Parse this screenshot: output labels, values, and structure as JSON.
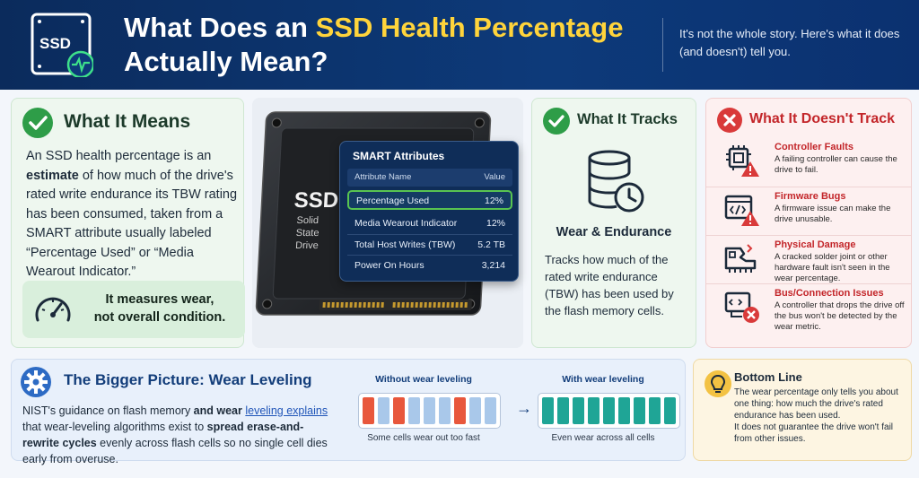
{
  "header": {
    "logo_text": "SSD",
    "title_line1_pre": "What Does an ",
    "title_line1_highlight": "SSD Health Percentage",
    "title_line2": "Actually Mean?",
    "subtitle": "It's not the whole story. Here's what it does (and doesn't) tell you."
  },
  "means": {
    "title": "What It Means",
    "body_1": "An SSD health percentage is an ",
    "body_bold": "estimate",
    "body_2": " of how much of the drive's rated write endurance its TBW rating has been consumed, taken from a SMART attribute usually labeled “Percentage Used” or “Media Wearout Indicator.”",
    "measure_line1": "It measures wear,",
    "measure_line2": "not overall condition."
  },
  "drive": {
    "brand": "SSD",
    "label_lines": [
      "Solid",
      "State",
      "Drive"
    ]
  },
  "smart": {
    "title": "SMART Attributes",
    "col_name": "Attribute Name",
    "col_value": "Value",
    "rows": [
      {
        "name": "Percentage Used",
        "value": "12%"
      },
      {
        "name": "Media Wearout Indicator",
        "value": "12%"
      },
      {
        "name": "Total Host Writes (TBW)",
        "value": "5.2 TB"
      },
      {
        "name": "Power On Hours",
        "value": "3,214"
      }
    ]
  },
  "tracks": {
    "title": "What It Tracks",
    "subtitle": "Wear & Endurance",
    "body": "Tracks how much of the rated write endurance (TBW) has been used by the flash memory cells."
  },
  "notrack": {
    "title": "What It Doesn't Track",
    "items": [
      {
        "name": "Controller Faults",
        "desc": "A failing controller can cause the drive to fail."
      },
      {
        "name": "Firmware Bugs",
        "desc": "A firmware issue can make the drive unusable."
      },
      {
        "name": "Physical Damage",
        "desc": "A cracked solder joint or other hardware fault isn't seen in the wear percentage."
      },
      {
        "name": "Bus/Connection Issues",
        "desc": "A controller that drops the drive off the bus won't be detected by the wear metric."
      }
    ]
  },
  "bigger": {
    "title": "The Bigger Picture: Wear Leveling",
    "body_1": "NIST's guidance on flash memory ",
    "body_bold1": "and wear ",
    "body_link": "leveling explains",
    "body_2": " that wear-leveling algorithms exist to ",
    "body_bold2": "spread erase-and-rewrite cycles",
    "body_3": " evenly across flash cells so no single cell dies early from overuse.",
    "without_label": "Without wear leveling",
    "without_caption": "Some cells wear out too fast",
    "with_label": "With wear leveling",
    "with_caption": "Even wear across all cells",
    "arrow": "→"
  },
  "bottom": {
    "title": "Bottom Line",
    "body_1": "The wear percentage only tells you about one thing: how much the drive's rated endurance has been used.",
    "body_2": "It does not guarantee the drive won't fail from other issues."
  },
  "colors": {
    "header_bg": "#0b2b5c",
    "highlight": "#ffd43b",
    "green": "#2e9d48",
    "red": "#d93a3a",
    "blue": "#2d6bc4",
    "worn_cell": "#e8573c",
    "fresh_cell": "#a9c8ea",
    "even_cell": "#1fa596"
  },
  "icons": [
    "ssd-heartbeat-icon",
    "check-icon",
    "gauge-icon",
    "database-clock-icon",
    "x-icon",
    "chip-warning-icon",
    "code-warning-icon",
    "board-damage-icon",
    "connection-error-icon",
    "gear-icon",
    "bulb-icon"
  ]
}
